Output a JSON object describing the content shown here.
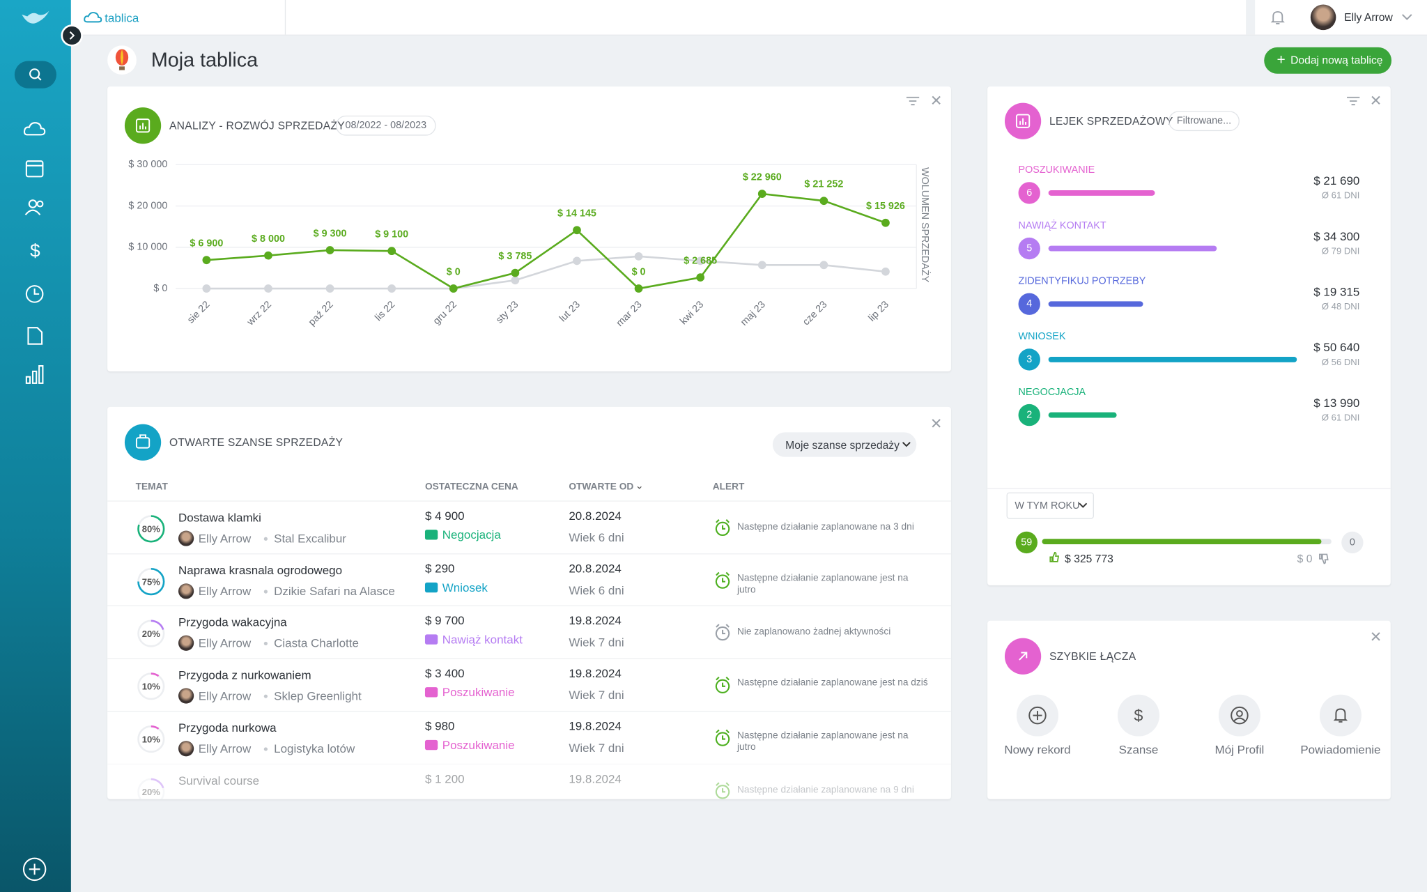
{
  "header": {
    "breadcrumb": "tablica",
    "user": "Elly Arrow"
  },
  "page": {
    "title": "Moja tablica",
    "add_button": "Dodaj nową tablicę"
  },
  "sales_widget": {
    "title": "ANALIZY - ROZWÓJ SPRZEDAŻY",
    "date_range": "08/2022 - 08/2023"
  },
  "chart_data": {
    "type": "line",
    "y_axis_label": "WOLUMEN SPRZEDAŻY",
    "categories": [
      "sie 22",
      "wrz 22",
      "paź 22",
      "lis 22",
      "gru 22",
      "sty 23",
      "lut 23",
      "mar 23",
      "kwi 23",
      "maj 23",
      "cze 23",
      "lip 23"
    ],
    "series": [
      {
        "color": "#5aab1e",
        "values": [
          6900,
          8000,
          9300,
          9100,
          0,
          3785,
          14145,
          0,
          2685,
          22960,
          21252,
          15926
        ],
        "value_labels": [
          "$ 6 900",
          "$ 8 000",
          "$ 9 300",
          "$ 9 100",
          "$ 0",
          "$ 3 785",
          "$ 14 145",
          "$ 0",
          "$ 2 685",
          "$ 22 960",
          "$ 21 252",
          "$ 15 926"
        ]
      },
      {
        "color": "#d3d6db",
        "values": [
          0,
          0,
          0,
          0,
          0,
          2000,
          6700,
          7800,
          6700,
          5700,
          5700,
          4100
        ]
      }
    ],
    "ylim": [
      0,
      30000
    ],
    "yticks": [
      {
        "value": 0,
        "label": "$ 0"
      },
      {
        "value": 10000,
        "label": "$ 10 000"
      },
      {
        "value": 20000,
        "label": "$ 20 000"
      },
      {
        "value": 30000,
        "label": "$ 30 000"
      }
    ],
    "grid": true
  },
  "funnel": {
    "title": "LEJEK SPRZEDAŻOWY",
    "filter": "Filtrowane...",
    "stages": [
      {
        "name": "POSZUKIWANIE",
        "count": 6,
        "amount": {
          "value": 21690,
          "label": "$ 21 690"
        },
        "days": "Ø 61 DNI",
        "color": "#e462d0"
      },
      {
        "name": "NAWIĄŻ KONTAKT",
        "count": 5,
        "amount": {
          "value": 34300,
          "label": "$ 34 300"
        },
        "days": "Ø 79 DNI",
        "color": "#b57cf2"
      },
      {
        "name": "ZIDENTYFIKUJ POTRZEBY",
        "count": 4,
        "amount": {
          "value": 19315,
          "label": "$ 19 315"
        },
        "days": "Ø 48 DNI",
        "color": "#5668dc"
      },
      {
        "name": "WNIOSEK",
        "count": 3,
        "amount": {
          "value": 50640,
          "label": "$ 50 640"
        },
        "days": "Ø 56 DNI",
        "color": "#13a3c6"
      },
      {
        "name": "NEGOCJACJA",
        "count": 2,
        "amount": {
          "value": 13990,
          "label": "$ 13 990"
        },
        "days": "Ø 61 DNI",
        "color": "#19b27a"
      }
    ],
    "period": "W TYM ROKU",
    "won_count": 59,
    "won_amount": "$ 325 773",
    "lost_count": 0,
    "lost_amount": "$ 0"
  },
  "opportunities": {
    "title": "OTWARTE SZANSE SPRZEDAŻY",
    "filter": "Moje szanse sprzedaży",
    "columns": [
      "TEMAT",
      "OSTATECZNA CENA",
      "OTWARTE OD",
      "ALERT"
    ],
    "rows": [
      {
        "progress": {
          "value": 80,
          "label": "80%"
        },
        "topic": "Dostawa klamki",
        "owner": "Elly Arrow",
        "company": "Stal Excalibur",
        "price": "$ 4 900",
        "stage": "Negocjacja",
        "color": "#19b27a",
        "date": "20.8.2024",
        "age": "Wiek 6 dni",
        "alert": "Następne działanie zaplanowane na 3 dni",
        "alert_color": "#4caf1e"
      },
      {
        "progress": {
          "value": 75,
          "label": "75%"
        },
        "topic": "Naprawa krasnala ogrodowego",
        "owner": "Elly Arrow",
        "company": "Dzikie Safari na Alasce",
        "price": "$ 290",
        "stage": "Wniosek",
        "color": "#13a3c6",
        "date": "20.8.2024",
        "age": "Wiek 6 dni",
        "alert": "Następne działanie zaplanowane jest na jutro",
        "alert_color": "#4caf1e"
      },
      {
        "progress": {
          "value": 20,
          "label": "20%"
        },
        "topic": "Przygoda wakacyjna",
        "owner": "Elly Arrow",
        "company": "Ciasta Charlotte",
        "price": "$ 9 700",
        "stage": "Nawiąż kontakt",
        "color": "#b57cf2",
        "date": "19.8.2024",
        "age": "Wiek 7 dni",
        "alert": "Nie zaplanowano żadnej aktywności",
        "alert_color": "#9aa0a8"
      },
      {
        "progress": {
          "value": 10,
          "label": "10%"
        },
        "topic": "Przygoda z nurkowaniem",
        "owner": "Elly Arrow",
        "company": "Sklep Greenlight",
        "price": "$ 3 400",
        "stage": "Poszukiwanie",
        "color": "#e462d0",
        "date": "19.8.2024",
        "age": "Wiek 7 dni",
        "alert": "Następne działanie zaplanowane jest na dziś",
        "alert_color": "#4caf1e"
      },
      {
        "progress": {
          "value": 10,
          "label": "10%"
        },
        "topic": "Przygoda nurkowa",
        "owner": "Elly Arrow",
        "company": "Logistyka lotów",
        "price": "$ 980",
        "stage": "Poszukiwanie",
        "color": "#e462d0",
        "date": "19.8.2024",
        "age": "Wiek 7 dni",
        "alert": "Następne działanie zaplanowane jest na jutro",
        "alert_color": "#4caf1e"
      },
      {
        "progress": {
          "value": 20,
          "label": "20%"
        },
        "topic": "Survival course",
        "price": "$ 1 200",
        "color": "#b57cf2",
        "date": "19.8.2024",
        "alert": "Następne działanie zaplanowane na 9 dni",
        "alert_color": "#4caf1e"
      }
    ]
  },
  "quick_links": {
    "title": "SZYBKIE ŁĄCZA",
    "items": [
      "Nowy rekord",
      "Szanse",
      "Mój Profil",
      "Powiadomienie"
    ]
  }
}
